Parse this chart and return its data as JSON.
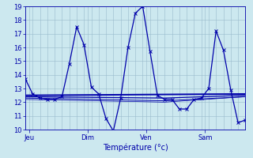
{
  "xlabel": "Température (°c)",
  "bg_color": "#cce8ef",
  "grid_color": "#99bbcc",
  "line_color": "#0000aa",
  "y_min": 10,
  "y_max": 19,
  "y_ticks": [
    10,
    11,
    12,
    13,
    14,
    15,
    16,
    17,
    18,
    19
  ],
  "x_tick_positions": [
    0.5,
    8.5,
    16.5,
    24.5
  ],
  "x_tick_labels": [
    "Jeu",
    "Dim",
    "Ven",
    "Sam"
  ],
  "x_min": 0,
  "x_max": 30,
  "series1_x": [
    0,
    1,
    2,
    3,
    4,
    5,
    6,
    7,
    8,
    9,
    10,
    11,
    12,
    13,
    14,
    15,
    16,
    17,
    18,
    19,
    20,
    21,
    22,
    23,
    24,
    25,
    26,
    27,
    28,
    29,
    30
  ],
  "series1_y": [
    13.7,
    12.6,
    12.3,
    12.2,
    12.2,
    12.4,
    14.8,
    17.5,
    16.2,
    13.1,
    12.6,
    10.8,
    9.9,
    12.3,
    16.0,
    18.5,
    19.0,
    15.7,
    12.5,
    12.2,
    12.2,
    11.5,
    11.5,
    12.2,
    12.3,
    13.0,
    17.2,
    15.8,
    12.9,
    10.5,
    10.7
  ],
  "series2_x": [
    0,
    30
  ],
  "series2_y": [
    12.5,
    12.6
  ],
  "series3_x": [
    0,
    19,
    30
  ],
  "series3_y": [
    12.4,
    12.3,
    12.5
  ],
  "series4_x": [
    0,
    19,
    30
  ],
  "series4_y": [
    12.3,
    12.1,
    12.4
  ],
  "series5_x": [
    0,
    19,
    30
  ],
  "series5_y": [
    12.2,
    12.0,
    12.4
  ],
  "marker_size": 3,
  "lw_main": 0.9,
  "lw_ref": 0.8,
  "xlabel_size": 7,
  "tick_label_size": 6
}
